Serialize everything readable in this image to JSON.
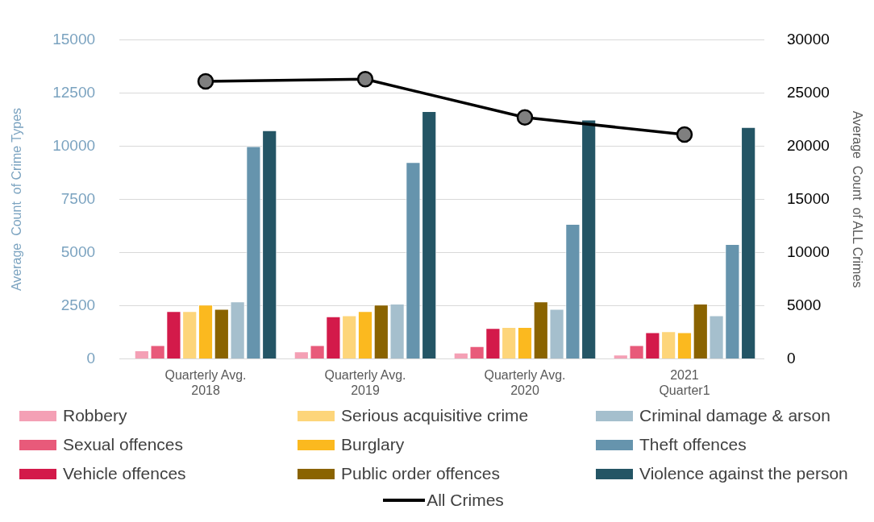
{
  "chart_data": {
    "type": "bar",
    "categories": [
      "Quarterly Avg.\n2018",
      "Quarterly Avg.\n2019",
      "Quarterly Avg.\n2020",
      "2021\nQuarter1"
    ],
    "ylabel": "Average  Count  of Crime Types",
    "y2label": "Average  Count  of ALL Crimes",
    "ylim": [
      0,
      15000
    ],
    "yticks": [
      0,
      2500,
      5000,
      7500,
      10000,
      12500,
      15000
    ],
    "y2lim": [
      0,
      30000
    ],
    "y2ticks": [
      0,
      5000,
      10000,
      15000,
      20000,
      25000,
      30000
    ],
    "grid": "y",
    "legend": "bottom",
    "marker": "circle",
    "series": [
      {
        "name": "Robbery",
        "color": "#f4a0b5",
        "values": [
          400,
          350,
          300,
          200
        ]
      },
      {
        "name": "Sexual offences",
        "color": "#e85a7a",
        "values": [
          650,
          650,
          600,
          650
        ]
      },
      {
        "name": "Vehicle offences",
        "color": "#d31a4a",
        "values": [
          2250,
          2000,
          1450,
          1250
        ]
      },
      {
        "name": "Serious acquisitive crime",
        "color": "#fdd57a",
        "values": [
          2250,
          2050,
          1500,
          1300
        ]
      },
      {
        "name": "Burglary",
        "color": "#fbb91f",
        "values": [
          2550,
          2250,
          1500,
          1250
        ]
      },
      {
        "name": "Public order offences",
        "color": "#8a6300",
        "values": [
          2350,
          2550,
          2700,
          2600
        ]
      },
      {
        "name": "Criminal damage & arson",
        "color": "#a5bfcd",
        "values": [
          2700,
          2600,
          2350,
          2050
        ]
      },
      {
        "name": "Theft offences",
        "color": "#6694ad",
        "values": [
          10000,
          9250,
          6350,
          5400
        ]
      },
      {
        "name": "Violence against the person",
        "color": "#245565",
        "values": [
          10750,
          11650,
          11250,
          10900
        ]
      },
      {
        "name": "All Crimes",
        "type": "line",
        "axis": "y2",
        "color": "#000000",
        "values": [
          26100,
          26300,
          22700,
          21100
        ]
      }
    ]
  }
}
